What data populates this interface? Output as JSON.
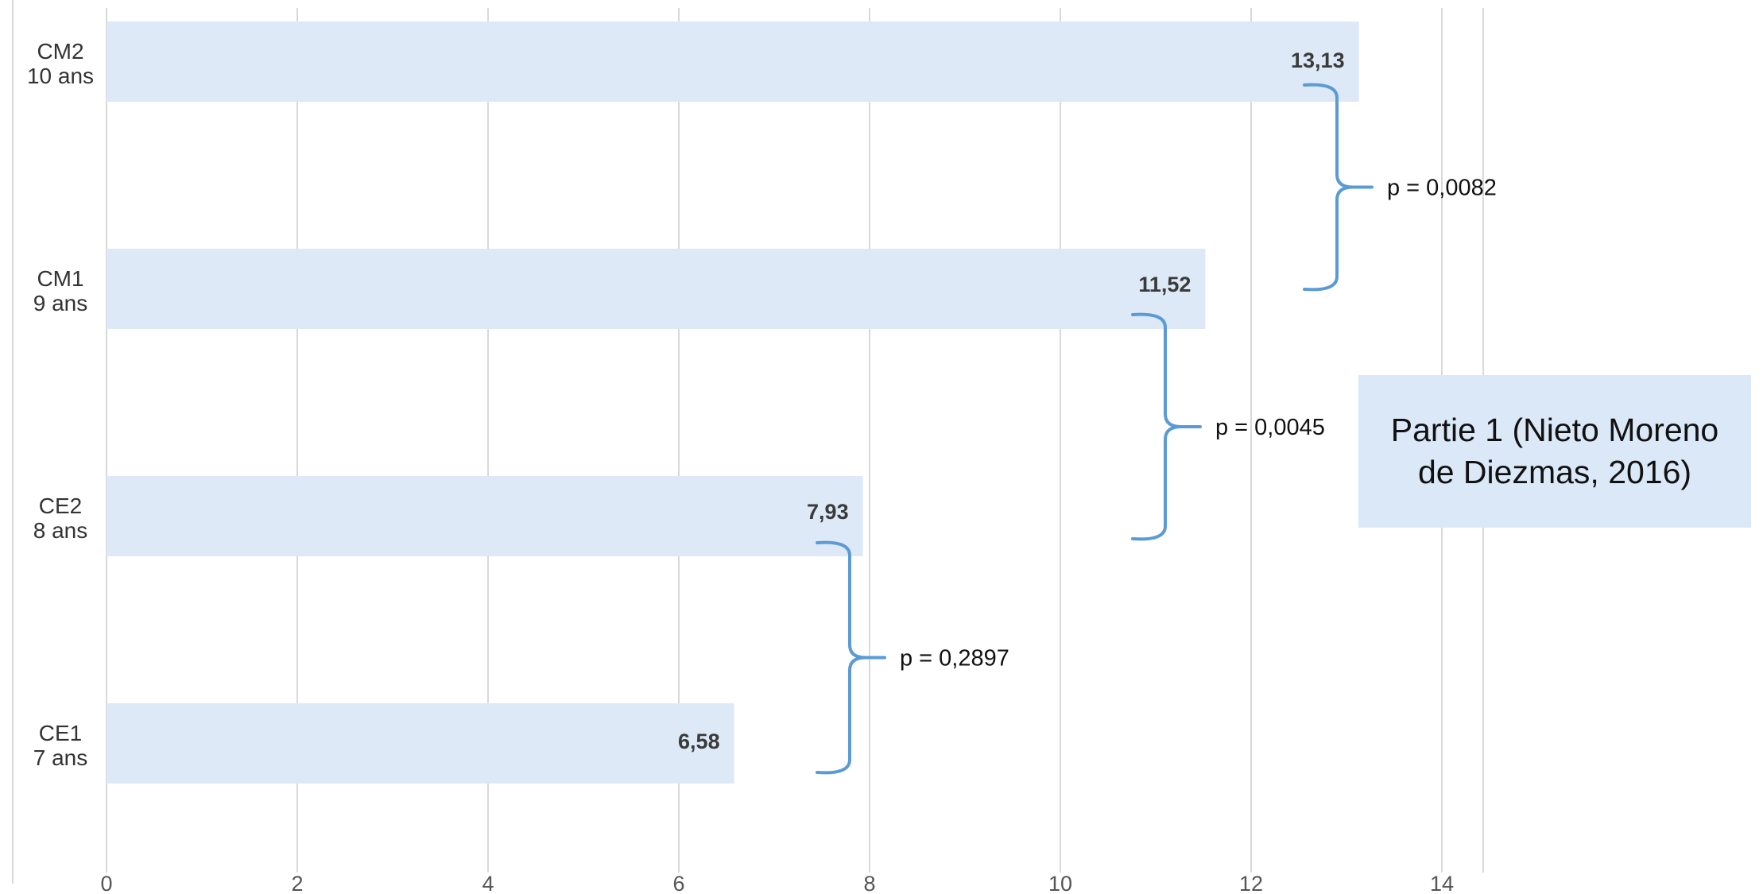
{
  "chart_data": {
    "type": "bar",
    "orientation": "horizontal",
    "categories": [
      [
        "CM2",
        "10 ans"
      ],
      [
        "CM1",
        "9 ans"
      ],
      [
        "CE2",
        "8 ans"
      ],
      [
        "CE1",
        "7 ans"
      ]
    ],
    "values": [
      13.13,
      11.52,
      7.93,
      6.58
    ],
    "value_labels": [
      "13,13",
      "11,52",
      "7,93",
      "6,58"
    ],
    "x_ticks": [
      0,
      2,
      4,
      6,
      8,
      10,
      12,
      14
    ],
    "x_tick_labels": [
      "0",
      "2",
      "4",
      "6",
      "8",
      "10",
      "12",
      "14"
    ],
    "xlim": [
      0,
      14.5
    ],
    "grid": "vertical",
    "colors": {
      "bar": "#dde9f6",
      "bracket": "#5b9bd5",
      "grid": "#d9d9d9",
      "note_box": "#dbe8f7"
    },
    "annotations": [
      {
        "from": "CM1",
        "to": "CM2",
        "text": "p = 0,0082"
      },
      {
        "from": "CE2",
        "to": "CM1",
        "text": "p = 0,0045"
      },
      {
        "from": "CE1",
        "to": "CE2",
        "text": "p = 0,2897"
      }
    ],
    "note": "Partie 1 (Nieto Moreno de Diezmas, 2016)"
  }
}
